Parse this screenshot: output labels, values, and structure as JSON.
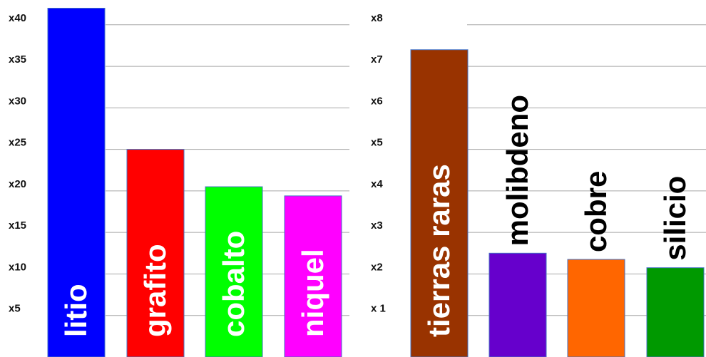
{
  "chart_data": [
    {
      "type": "bar",
      "categories": [
        "litio",
        "grafito",
        "cobalto",
        "niquel"
      ],
      "values": [
        42,
        25,
        20.5,
        19.4
      ],
      "colors": [
        "#0000ff",
        "#ff0000",
        "#00ff00",
        "#ff00ff"
      ],
      "ylim": [
        0,
        42.3
      ],
      "yticks": [
        {
          "value": 5,
          "label": "x5"
        },
        {
          "value": 10,
          "label": "x10"
        },
        {
          "value": 15,
          "label": "x15"
        },
        {
          "value": 20,
          "label": "x20"
        },
        {
          "value": 25,
          "label": "x25"
        },
        {
          "value": 30,
          "label": "x30"
        },
        {
          "value": 35,
          "label": "x35"
        },
        {
          "value": 40,
          "label": "x40"
        }
      ],
      "category_label_position": "inside",
      "grid": true
    },
    {
      "type": "bar",
      "categories": [
        "tierras raras",
        "molibdeno",
        "cobre",
        "silicio"
      ],
      "values": [
        7.4,
        2.5,
        2.35,
        2.15
      ],
      "colors": [
        "#993300",
        "#6600cc",
        "#ff6600",
        "#009900"
      ],
      "ylim": [
        0,
        8.46
      ],
      "yticks": [
        {
          "value": 1,
          "label": "x 1"
        },
        {
          "value": 2,
          "label": "x2"
        },
        {
          "value": 3,
          "label": "x3"
        },
        {
          "value": 4,
          "label": "x4"
        },
        {
          "value": 5,
          "label": "x5"
        },
        {
          "value": 6,
          "label": "x6"
        },
        {
          "value": 7,
          "label": "x7"
        },
        {
          "value": 8,
          "label": "x8"
        }
      ],
      "category_label_position": [
        "inside",
        "above",
        "above",
        "above"
      ],
      "grid": true
    }
  ]
}
